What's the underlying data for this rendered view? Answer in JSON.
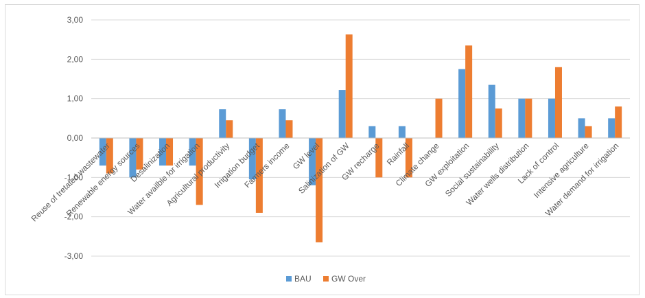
{
  "chart_data": {
    "type": "bar",
    "title": "",
    "xlabel": "",
    "ylabel": "",
    "ylim": [
      -3,
      3
    ],
    "yticks": [
      "-3,00",
      "-2,00",
      "-1,00",
      "0,00",
      "1,00",
      "2,00",
      "3,00"
    ],
    "grid": true,
    "legend_position": "bottom",
    "categories": [
      "Reuse of tretated wastewater",
      "Renewable energy sources",
      "Desalinization",
      "Water availble for irrigation",
      "Agricultural productivity",
      "Irrigation budget",
      "Farmers income",
      "GW level",
      "Salinization of GW",
      "GW recharge",
      "Rainfall",
      "Climate change",
      "GW exploitation",
      "Social sustainability",
      "Water wells distribution",
      "Lack of control",
      "Intensive agriculture",
      "Water demand for irrigation"
    ],
    "series": [
      {
        "name": "BAU",
        "color": "#5b9bd5",
        "values": [
          -0.7,
          -1.0,
          -0.7,
          -0.7,
          0.73,
          -1.05,
          0.73,
          -1.2,
          1.22,
          0.3,
          0.3,
          0.0,
          1.75,
          1.35,
          1.0,
          1.0,
          0.5,
          0.5
        ]
      },
      {
        "name": "GW Over",
        "color": "#ed7d31",
        "values": [
          -0.9,
          -0.8,
          -0.7,
          -1.7,
          0.45,
          -1.9,
          0.45,
          -2.65,
          2.63,
          -1.0,
          -1.0,
          1.0,
          2.35,
          0.75,
          1.0,
          1.8,
          0.3,
          0.8
        ]
      }
    ]
  }
}
